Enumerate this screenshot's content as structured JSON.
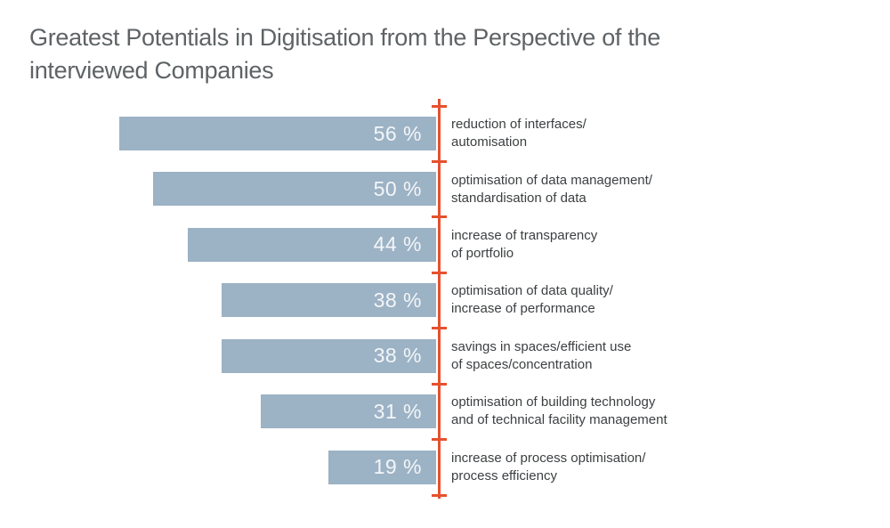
{
  "title": {
    "line1": "Greatest Potentials in Digitisation from the Perspective of the",
    "line2": "interviewed Companies"
  },
  "colors": {
    "background": "#ffffff",
    "bar": "#9cb2c5",
    "axis": "#e5512e",
    "title_text": "#5e6366",
    "label_text": "#3c3f41",
    "value_text": "#f4f6f7"
  },
  "chart_data": {
    "type": "bar",
    "orientation": "horizontal",
    "title": "Greatest Potentials in Digitisation from the Perspective of the interviewed Companies",
    "unit": "%",
    "value_range": [
      0,
      56
    ],
    "axis_position": "right",
    "grid": false,
    "legend": false,
    "categories": [
      "reduction of interfaces/ automisation",
      "optimisation of data management/ standardisation of data",
      "increase of transparency of portfolio",
      "optimisation of data quality/ increase of performance",
      "savings in spaces/efficient use of spaces/concentration",
      "optimisation of building technology and of technical facility management",
      "increase of process optimisation/ process efficiency"
    ],
    "values": [
      56,
      50,
      44,
      38,
      38,
      31,
      19
    ],
    "items": [
      {
        "value": 56,
        "value_label": "56 %",
        "label_line1": "reduction of interfaces/",
        "label_line2": "automisation"
      },
      {
        "value": 50,
        "value_label": "50 %",
        "label_line1": "optimisation of data management/",
        "label_line2": "standardisation of data"
      },
      {
        "value": 44,
        "value_label": "44 %",
        "label_line1": "increase of transparency",
        "label_line2": "of portfolio"
      },
      {
        "value": 38,
        "value_label": "38 %",
        "label_line1": "optimisation of data quality/",
        "label_line2": "increase of performance"
      },
      {
        "value": 38,
        "value_label": "38 %",
        "label_line1": "savings in spaces/efficient use",
        "label_line2": "of spaces/concentration"
      },
      {
        "value": 31,
        "value_label": "31 %",
        "label_line1": "optimisation of building technology",
        "label_line2": "and of technical facility management"
      },
      {
        "value": 19,
        "value_label": "19 %",
        "label_line1": "increase of process optimisation/",
        "label_line2": "process efficiency"
      }
    ]
  }
}
